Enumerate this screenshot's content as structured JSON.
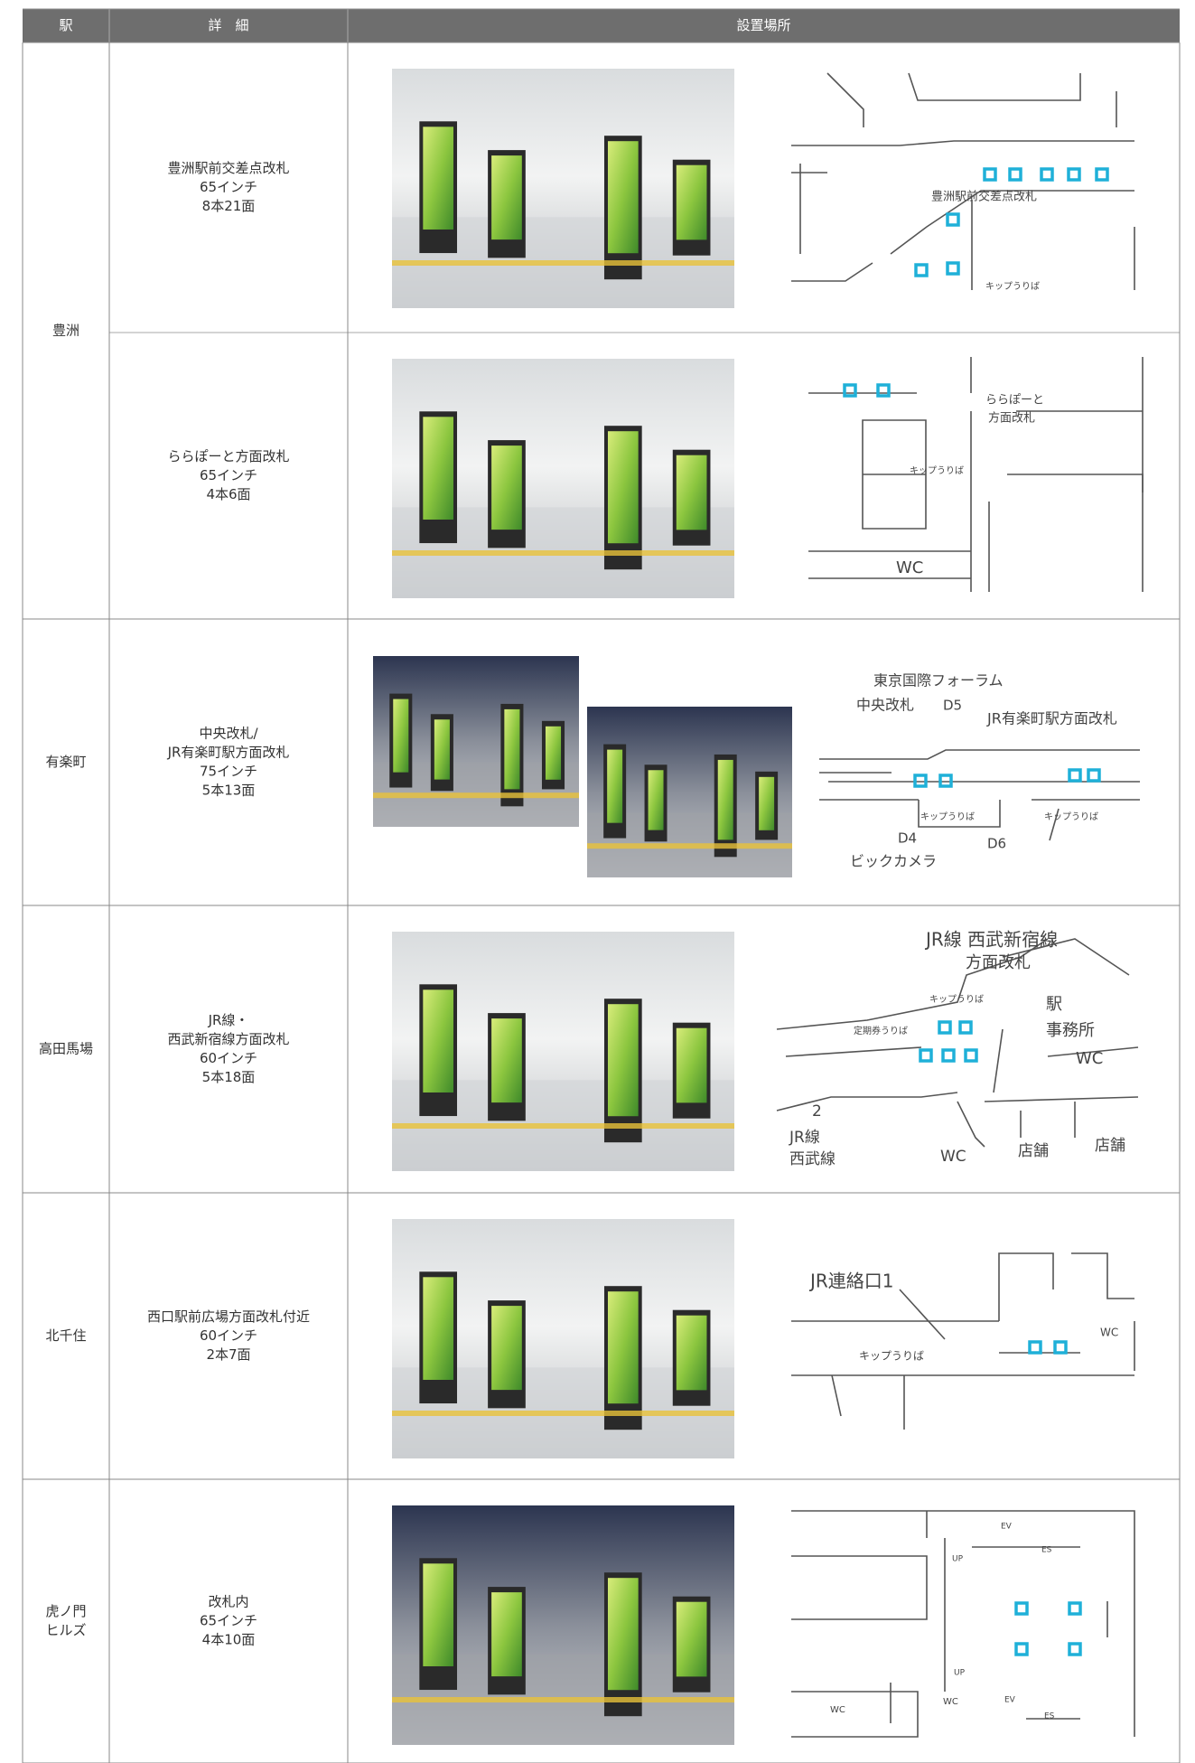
{
  "header": {
    "station": "駅",
    "details": "詳　細",
    "location": "設置場所"
  },
  "stations": [
    {
      "name": [
        "豊洲"
      ],
      "entries": [
        {
          "details": [
            "豊洲駅前交差点改札",
            "65インチ",
            "8本21面"
          ],
          "map_labels": [
            "豊洲駅前交差点改札",
            "キップうりば"
          ]
        },
        {
          "details": [
            "ららぽーと方面改札",
            "65インチ",
            "4本6面"
          ],
          "map_labels": [
            "ららぽーと",
            "方面改札",
            "キップうりば",
            "WC"
          ]
        }
      ]
    },
    {
      "name": [
        "有楽町"
      ],
      "entries": [
        {
          "details": [
            "中央改札/",
            "JR有楽町駅方面改札",
            "75インチ",
            "5本13面"
          ],
          "map_labels": [
            "東京国際フォーラム",
            "中央改札",
            "D5",
            "JR有楽町駅方面改札",
            "キップうりば",
            "キップうりば",
            "D4",
            "D6",
            "ビックカメラ"
          ]
        }
      ]
    },
    {
      "name": [
        "高田馬場"
      ],
      "entries": [
        {
          "details": [
            "JR線・",
            "西武新宿線方面改札",
            "60インチ",
            "5本18面"
          ],
          "map_labels": [
            "JR線 西武新宿線",
            "方面改札",
            "キップうりば",
            "定期券うりば",
            "駅",
            "事務所",
            "WC",
            "2",
            "JR線",
            "西武線",
            "WC",
            "店舗",
            "店舗"
          ]
        }
      ]
    },
    {
      "name": [
        "北千住"
      ],
      "entries": [
        {
          "details": [
            "西口駅前広場方面改札付近",
            "60インチ",
            "2本7面"
          ],
          "map_labels": [
            "JR連絡口1",
            "キップうりば",
            "WC"
          ]
        }
      ]
    },
    {
      "name": [
        "虎ノ門",
        "ヒルズ"
      ],
      "entries": [
        {
          "details": [
            "改札内",
            "65インチ",
            "4本10面"
          ],
          "map_labels": [
            "EV",
            "ES",
            "UP",
            "UP",
            "WC",
            "WC",
            "EV",
            "ES"
          ]
        }
      ]
    }
  ]
}
